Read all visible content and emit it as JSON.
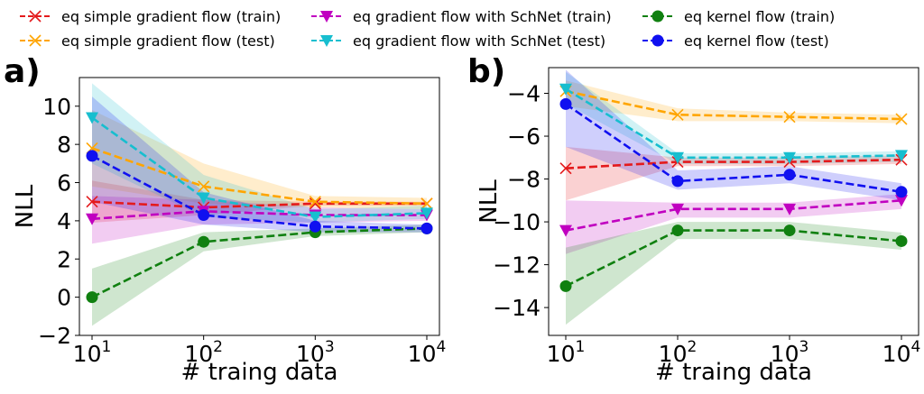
{
  "chart_data": [
    {
      "type": "line",
      "panel_label": "a)",
      "xlabel": "# traing data",
      "ylabel": "NLL",
      "xscale": "log",
      "x": [
        10,
        100,
        1000,
        10000
      ],
      "x_ticks": [
        {
          "value": 10,
          "base": "10",
          "exp": "1"
        },
        {
          "value": 100,
          "base": "10",
          "exp": "2"
        },
        {
          "value": 1000,
          "base": "10",
          "exp": "3"
        },
        {
          "value": 10000,
          "base": "10",
          "exp": "4"
        }
      ],
      "ylim": [
        -2,
        11.5
      ],
      "y_ticks": [
        {
          "value": -2,
          "label": "−2"
        },
        {
          "value": 0,
          "label": "0"
        },
        {
          "value": 2,
          "label": "2"
        },
        {
          "value": 4,
          "label": "4"
        },
        {
          "value": 6,
          "label": "6"
        },
        {
          "value": 8,
          "label": "8"
        },
        {
          "value": 10,
          "label": "10"
        }
      ],
      "series": [
        {
          "name": "eq simple gradient flow (train)",
          "color": "#e41a1c",
          "marker": "x",
          "values": [
            5.0,
            4.7,
            4.9,
            4.9
          ],
          "lower": [
            3.9,
            4.3,
            4.8,
            4.8
          ],
          "upper": [
            6.1,
            5.1,
            5.0,
            5.0
          ]
        },
        {
          "name": "eq simple gradient flow (test)",
          "color": "#ffa500",
          "marker": "x",
          "values": [
            7.8,
            5.8,
            5.0,
            4.9
          ],
          "lower": [
            5.8,
            4.9,
            4.7,
            4.6
          ],
          "upper": [
            9.8,
            7.0,
            5.3,
            5.2
          ]
        },
        {
          "name": "eq gradient flow with SchNet (train)",
          "color": "#c000c0",
          "marker": "v",
          "values": [
            4.1,
            4.5,
            4.3,
            4.3
          ],
          "lower": [
            2.8,
            3.8,
            3.9,
            4.0
          ],
          "upper": [
            5.3,
            5.1,
            4.7,
            4.6
          ]
        },
        {
          "name": "eq gradient flow with SchNet (test)",
          "color": "#17becf",
          "marker": "v",
          "values": [
            9.4,
            5.2,
            4.2,
            4.4
          ],
          "lower": [
            7.0,
            4.2,
            3.9,
            4.1
          ],
          "upper": [
            11.2,
            6.4,
            4.6,
            4.8
          ]
        },
        {
          "name": "eq kernel flow (train)",
          "color": "#108010",
          "marker": "o",
          "values": [
            0.0,
            2.9,
            3.4,
            3.6
          ],
          "lower": [
            -1.5,
            2.4,
            3.2,
            3.4
          ],
          "upper": [
            1.5,
            3.4,
            3.6,
            3.8
          ]
        },
        {
          "name": "eq kernel flow (test)",
          "color": "#1010f0",
          "marker": "o",
          "values": [
            7.4,
            4.3,
            3.7,
            3.6
          ],
          "lower": [
            5.0,
            3.8,
            3.4,
            3.4
          ],
          "upper": [
            10.5,
            5.5,
            4.0,
            3.8
          ]
        }
      ]
    },
    {
      "type": "line",
      "panel_label": "b)",
      "xlabel": "# traing data",
      "ylabel": "NLL",
      "xscale": "log",
      "x": [
        10,
        100,
        1000,
        10000
      ],
      "x_ticks": [
        {
          "value": 10,
          "base": "10",
          "exp": "1"
        },
        {
          "value": 100,
          "base": "10",
          "exp": "2"
        },
        {
          "value": 1000,
          "base": "10",
          "exp": "3"
        },
        {
          "value": 10000,
          "base": "10",
          "exp": "4"
        }
      ],
      "ylim": [
        -15.3,
        -2.8
      ],
      "y_ticks": [
        {
          "value": -14,
          "label": "−14"
        },
        {
          "value": -12,
          "label": "−12"
        },
        {
          "value": -10,
          "label": "−10"
        },
        {
          "value": -8,
          "label": "−8"
        },
        {
          "value": -6,
          "label": "−6"
        },
        {
          "value": -4,
          "label": "−4"
        }
      ],
      "series": [
        {
          "name": "eq simple gradient flow (train)",
          "color": "#e41a1c",
          "marker": "x",
          "values": [
            -7.5,
            -7.2,
            -7.2,
            -7.1
          ],
          "lower": [
            -9.0,
            -7.4,
            -7.4,
            -7.3
          ],
          "upper": [
            -6.5,
            -7.0,
            -7.0,
            -6.9
          ]
        },
        {
          "name": "eq simple gradient flow (test)",
          "color": "#ffa500",
          "marker": "x",
          "values": [
            -3.9,
            -5.0,
            -5.1,
            -5.2
          ],
          "lower": [
            -4.6,
            -5.3,
            -5.3,
            -5.4
          ],
          "upper": [
            -3.4,
            -4.7,
            -4.9,
            -5.0
          ]
        },
        {
          "name": "eq gradient flow with SchNet (train)",
          "color": "#c000c0",
          "marker": "v",
          "values": [
            -10.4,
            -9.4,
            -9.4,
            -9.0
          ],
          "lower": [
            -11.5,
            -9.8,
            -9.8,
            -9.4
          ],
          "upper": [
            -9.0,
            -9.1,
            -9.1,
            -8.7
          ]
        },
        {
          "name": "eq gradient flow with SchNet (test)",
          "color": "#17becf",
          "marker": "v",
          "values": [
            -3.8,
            -7.0,
            -7.0,
            -6.9
          ],
          "lower": [
            -4.5,
            -7.3,
            -7.3,
            -7.2
          ],
          "upper": [
            -3.0,
            -6.8,
            -6.8,
            -6.7
          ]
        },
        {
          "name": "eq kernel flow (train)",
          "color": "#108010",
          "marker": "o",
          "values": [
            -13.0,
            -10.4,
            -10.4,
            -10.9
          ],
          "lower": [
            -14.8,
            -10.8,
            -10.8,
            -11.3
          ],
          "upper": [
            -11.2,
            -10.0,
            -10.0,
            -10.5
          ]
        },
        {
          "name": "eq kernel flow (test)",
          "color": "#1010f0",
          "marker": "o",
          "values": [
            -4.5,
            -8.1,
            -7.8,
            -8.6
          ],
          "lower": [
            -6.5,
            -8.5,
            -8.2,
            -9.0
          ],
          "upper": [
            -2.9,
            -7.6,
            -7.4,
            -8.2
          ]
        }
      ]
    }
  ]
}
